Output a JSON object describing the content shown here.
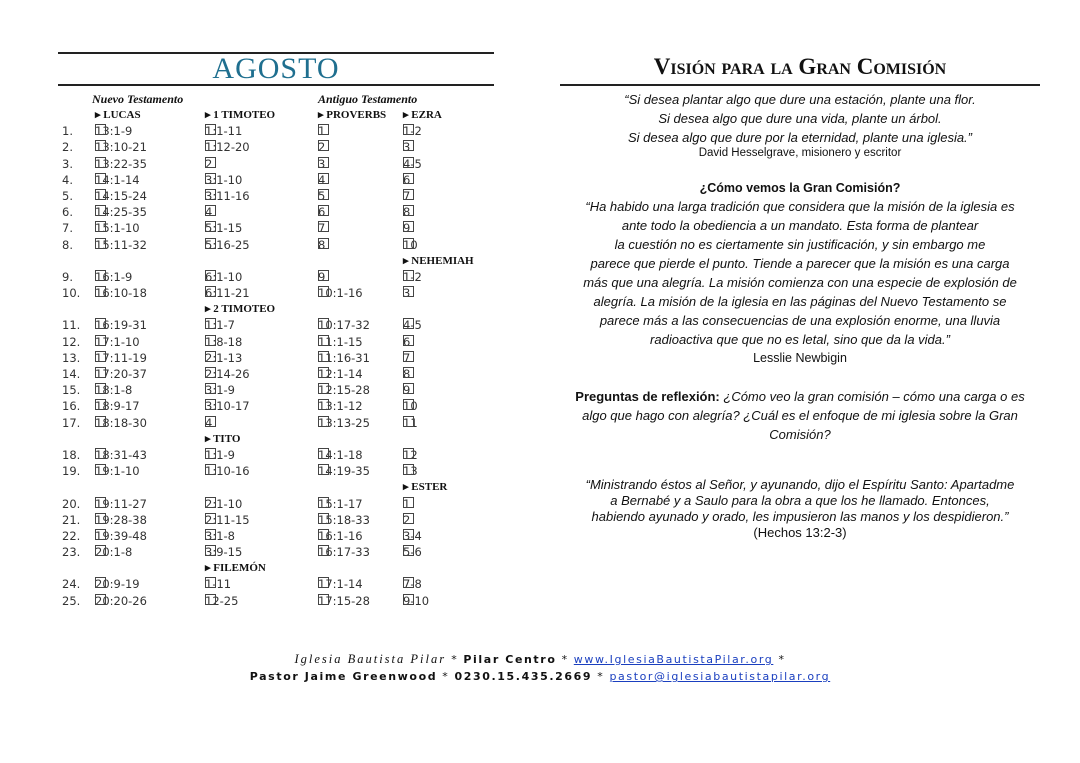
{
  "left": {
    "month": "AGOSTO",
    "nt_label": "Nuevo Testamento",
    "ot_label": "Antiguo Testamento",
    "book_headers": [
      "LUCAS",
      "1 TIMOTEO",
      "PROVERBS",
      "EZRA"
    ],
    "rows": [
      {
        "n": "1.",
        "c": [
          "13:1-9",
          "1:1-11",
          "1",
          "1-2"
        ]
      },
      {
        "n": "2.",
        "c": [
          "13:10-21",
          "1:12-20",
          "2",
          "3"
        ]
      },
      {
        "n": "3.",
        "c": [
          "13:22-35",
          "2",
          "3",
          "4-5"
        ]
      },
      {
        "n": "4.",
        "c": [
          "14:1-14",
          "3:1-10",
          "4",
          "6"
        ]
      },
      {
        "n": "5.",
        "c": [
          "14:15-24",
          "3:11-16",
          "5",
          "7"
        ]
      },
      {
        "n": "6.",
        "c": [
          "14:25-35",
          "4",
          "6",
          "8"
        ]
      },
      {
        "n": "7.",
        "c": [
          "15:1-10",
          "5:1-15",
          "7",
          "9"
        ]
      },
      {
        "n": "8.",
        "c": [
          "15:11-32",
          "5:16-25",
          "8",
          "10"
        ]
      },
      {
        "h": "NEHEMIAH",
        "col": 3
      },
      {
        "n": "9.",
        "c": [
          "16:1-9",
          "6:1-10",
          "9",
          "1-2"
        ]
      },
      {
        "n": "10.",
        "c": [
          "16:10-18",
          "6:11-21",
          "10:1-16",
          "3"
        ]
      },
      {
        "h": "2 TIMOTEO",
        "col": 1
      },
      {
        "n": "11.",
        "c": [
          "16:19-31",
          "1:1-7",
          "10:17-32",
          "4-5"
        ]
      },
      {
        "n": "12.",
        "c": [
          "17:1-10",
          "1:8-18",
          "11:1-15",
          "6"
        ]
      },
      {
        "n": "13.",
        "c": [
          "17:11-19",
          "2:1-13",
          "11:16-31",
          "7"
        ]
      },
      {
        "n": "14.",
        "c": [
          "17:20-37",
          "2:14-26",
          "12:1-14",
          "8"
        ]
      },
      {
        "n": "15.",
        "c": [
          "18:1-8",
          "3:1-9",
          "12:15-28",
          "9"
        ]
      },
      {
        "n": "16.",
        "c": [
          "18:9-17",
          "3:10-17",
          "13:1-12",
          "10"
        ]
      },
      {
        "n": "17.",
        "c": [
          "18:18-30",
          "4",
          "13:13-25",
          "11"
        ]
      },
      {
        "h": "TITO",
        "col": 1
      },
      {
        "n": "18.",
        "c": [
          "18:31-43",
          "1:1-9",
          "14:1-18",
          "12"
        ]
      },
      {
        "n": "19.",
        "c": [
          "19:1-10",
          "1:10-16",
          "14:19-35",
          "13"
        ]
      },
      {
        "h": "ESTER",
        "col": 3
      },
      {
        "n": "20.",
        "c": [
          "19:11-27",
          "2:1-10",
          "15:1-17",
          "1"
        ]
      },
      {
        "n": "21.",
        "c": [
          "19:28-38",
          "2:11-15",
          "15:18-33",
          "2"
        ]
      },
      {
        "n": "22.",
        "c": [
          "19:39-48",
          "3:1-8",
          "16:1-16",
          "3-4"
        ]
      },
      {
        "n": "23.",
        "c": [
          "20:1-8",
          "3:9-15",
          "16:17-33",
          "5-6"
        ]
      },
      {
        "h": "FILEMÓN",
        "col": 1
      },
      {
        "n": "24.",
        "c": [
          "20:9-19",
          "1-11",
          "17:1-14",
          "7-8"
        ]
      },
      {
        "n": "25.",
        "c": [
          "20:20-26",
          "12-25",
          "17:15-28",
          "9-10"
        ]
      }
    ]
  },
  "right": {
    "title": "Visión para la Gran Comisión",
    "quote1": [
      "“Si desea plantar algo que dure una estación, plante una flor.",
      "Si desea algo que dure una vida, plante un árbol.",
      "Si desea algo que dure por la eternidad, plante una iglesia.”"
    ],
    "quote1_author": "David Hesselgrave, misionero y escritor",
    "section_heading": "¿Cómo vemos la Gran Comisión?",
    "quote2": [
      "“Ha habido una larga tradición que considera que la misión de la iglesia es",
      "ante todo la obediencia a un mandato. Esta forma de plantear",
      "la cuestión no es ciertamente sin justificación, y sin embargo me",
      "parece que pierde el punto. Tiende a parecer que la misión es una carga",
      "más que una alegría. La misión comienza con una especie de explosión de",
      "alegría. La misión de la iglesia en las páginas del Nuevo Testamento se",
      "parece más a las consecuencias de una explosión enorme, una lluvia",
      "radioactiva que que no es letal, sino que da la vida.”"
    ],
    "quote2_author": "Lesslie Newbigin",
    "reflection_label": "Preguntas de reflexión:",
    "reflection_text": " ¿Cómo veo la gran comisión – cómo una carga o es algo que hago con alegría? ¿Cuál es el enfoque de mi iglesia sobre la Gran Comisión?",
    "scripture": "“Ministrando éstos al Señor, y ayunando, dijo el Espíritu Santo: Apartadme a Bernabé y a Saulo para la obra a que los he llamado. Entonces, habiendo ayunado y orado, les impusieron las manos y los despidieron.”",
    "scripture_ref": " (Hechos 13:2-3)"
  },
  "footer": {
    "church": "Iglesia Bautista Pilar",
    "location": "Pilar Centro",
    "website": "www.IglesiaBautistaPilar.org",
    "pastor": "Pastor Jaime Greenwood",
    "phone": "0230.15.435.2669",
    "email": "pastor@iglesiabautistapilar.org",
    "link_color": "#1a3fbf",
    "title_color": "#1f6f8f"
  }
}
